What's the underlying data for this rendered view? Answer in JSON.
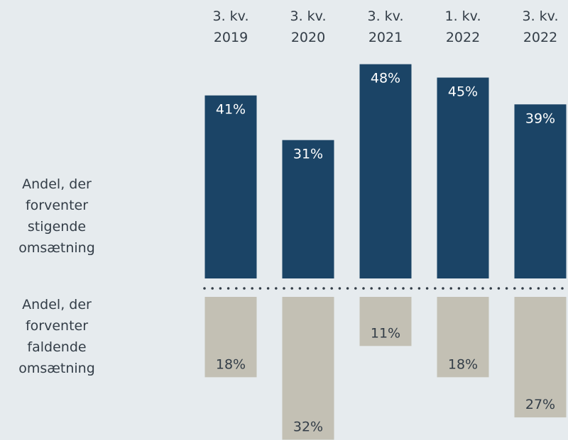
{
  "chart_data": {
    "type": "diverging_bar",
    "categories": [
      "3. kv. 2019",
      "3. kv. 2020",
      "3. kv. 2021",
      "1. kv. 2022",
      "3. kv. 2022"
    ],
    "series": [
      {
        "name": "Andel, der forventer stigende omsætning",
        "color": "#1b4466",
        "direction": "up",
        "values": [
          41,
          31,
          48,
          45,
          39
        ],
        "value_labels": [
          "41%",
          "31%",
          "48%",
          "45%",
          "39%"
        ]
      },
      {
        "name": "Andel, der forventer faldende omsætning",
        "color": "#c3c0b4",
        "direction": "down",
        "values": [
          18,
          32,
          11,
          18,
          27
        ],
        "value_labels": [
          "18%",
          "32%",
          "11%",
          "18%",
          "27%"
        ]
      }
    ]
  }
}
